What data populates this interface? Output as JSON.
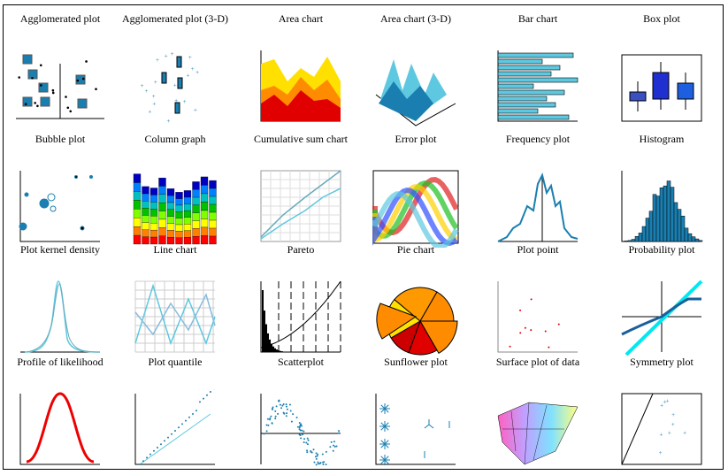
{
  "gallery": {
    "items": [
      {
        "label": "Agglomerated plot",
        "icon": "agglomerated-plot-icon"
      },
      {
        "label": "Agglomerated plot (3-D)",
        "icon": "agglomerated-plot-3d-icon"
      },
      {
        "label": "Area chart",
        "icon": "area-chart-icon"
      },
      {
        "label": "Area chart (3-D)",
        "icon": "area-chart-3d-icon"
      },
      {
        "label": "Bar chart",
        "icon": "bar-chart-icon"
      },
      {
        "label": "Box plot",
        "icon": "box-plot-icon"
      },
      {
        "label": "Bubble plot",
        "icon": "bubble-plot-icon"
      },
      {
        "label": "Column graph",
        "icon": "column-graph-icon"
      },
      {
        "label": "Cumulative sum chart",
        "icon": "cumulative-sum-chart-icon"
      },
      {
        "label": "Error plot",
        "icon": "error-plot-icon"
      },
      {
        "label": "Frequency plot",
        "icon": "frequency-plot-icon"
      },
      {
        "label": "Histogram",
        "icon": "histogram-icon"
      },
      {
        "label": "Plot kernel density",
        "icon": "kernel-density-icon"
      },
      {
        "label": "Line chart",
        "icon": "line-chart-icon"
      },
      {
        "label": "Pareto",
        "icon": "pareto-icon"
      },
      {
        "label": "Pie chart",
        "icon": "pie-chart-icon"
      },
      {
        "label": "Plot point",
        "icon": "plot-point-icon"
      },
      {
        "label": "Probability plot",
        "icon": "probability-plot-icon"
      },
      {
        "label": "Profile of likelihood",
        "icon": "likelihood-profile-icon"
      },
      {
        "label": "Plot quantile",
        "icon": "quantile-plot-icon"
      },
      {
        "label": "Scatterplot",
        "icon": "scatterplot-icon"
      },
      {
        "label": "Sunflower plot",
        "icon": "sunflower-plot-icon"
      },
      {
        "label": "Surface plot of data",
        "icon": "surface-plot-icon"
      },
      {
        "label": "Symmetry plot",
        "icon": "symmetry-plot-icon"
      }
    ]
  },
  "colors": {
    "blue": "#1a7fb0",
    "lightblue": "#5ec8e0",
    "red": "#e00000",
    "orange": "#ff8c00",
    "yellow": "#ffe000"
  }
}
